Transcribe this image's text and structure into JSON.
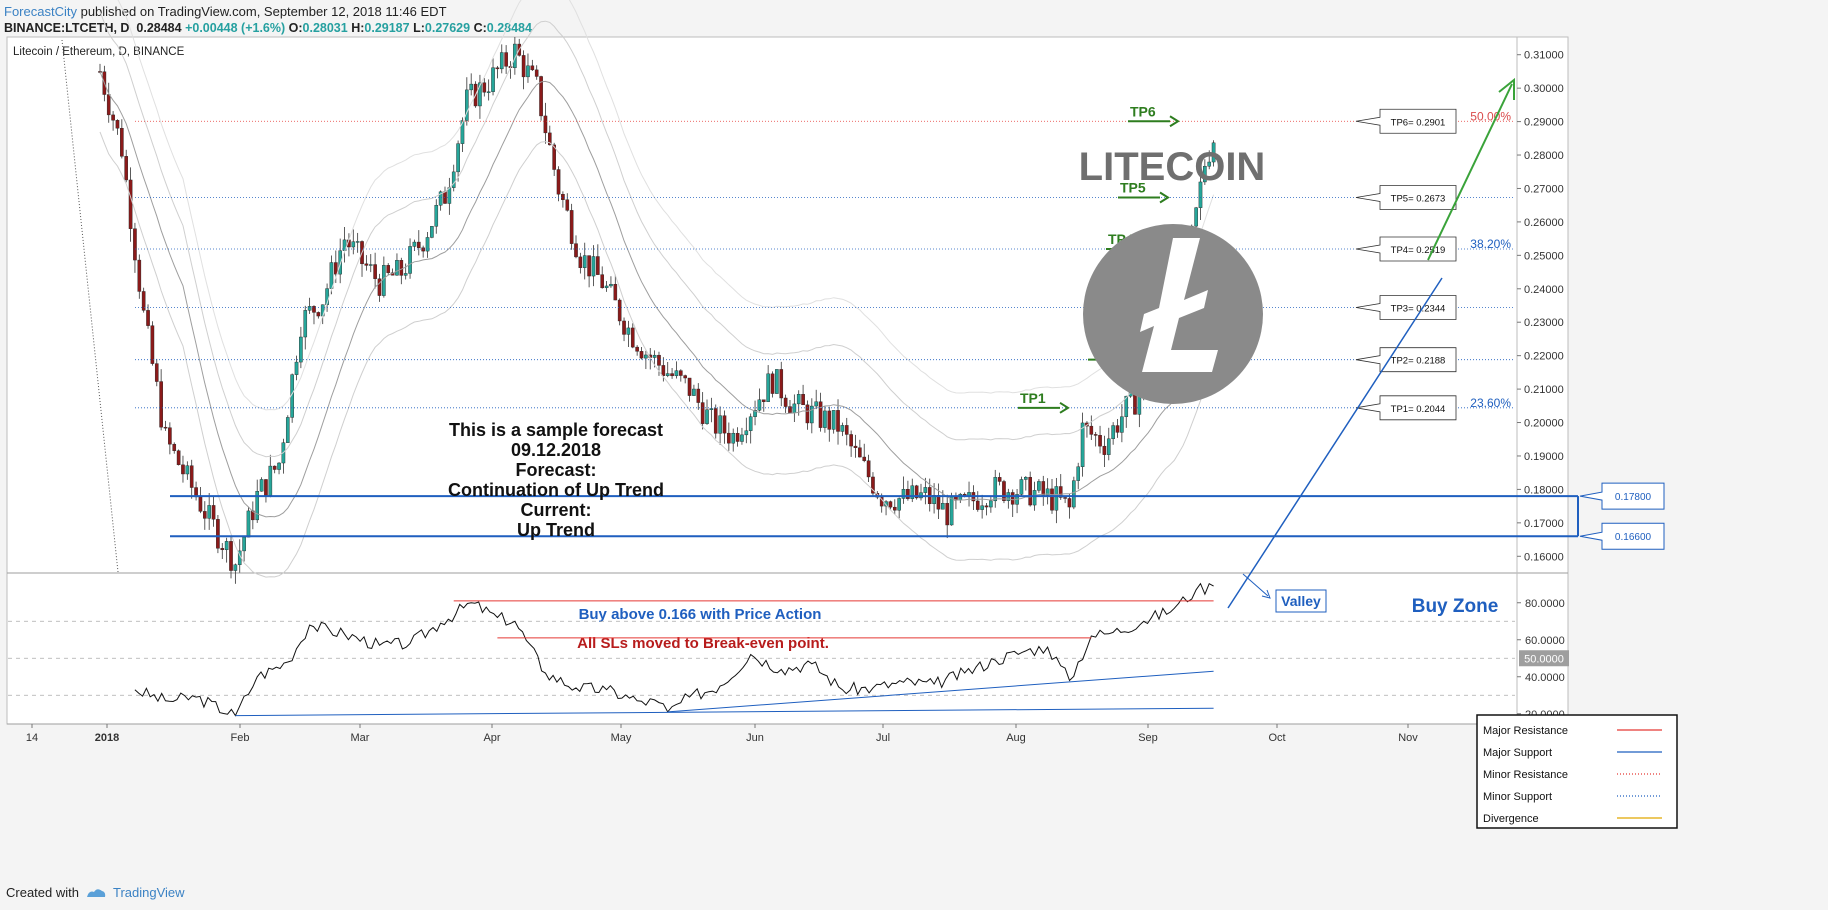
{
  "header": {
    "publisher": "ForecastCity",
    "published_text": "published on TradingView.com, September 12, 2018 11:46 EDT",
    "symbol": "BINANCE:LTCETH, D",
    "last": "0.28484",
    "change": "+0.00448 (+1.6%)",
    "o_label": "O:",
    "o": "0.28031",
    "h_label": "H:",
    "h": "0.29187",
    "l_label": "L:",
    "l": "0.27629",
    "c_label": "C:",
    "c": "0.28484"
  },
  "footer": {
    "created_with": "Created with",
    "tradingview": "TradingView"
  },
  "colors": {
    "up": "#26a69a",
    "down": "#8b1a1a",
    "blue": "#1f5fbf",
    "green": "#2e7d1f",
    "red": "#e53935",
    "fib": "#d94c4c",
    "gray": "#888888"
  },
  "chart_data": [
    {
      "type": "candlestick",
      "title": "Litecoin / Ethereum, D, BINANCE",
      "ylim": [
        0.155,
        0.315
      ],
      "y_ticks": [
        "0.31000",
        "0.30000",
        "0.29000",
        "0.28000",
        "0.27000",
        "0.26000",
        "0.25000",
        "0.24000",
        "0.23000",
        "0.22000",
        "0.21000",
        "0.20000",
        "0.19000",
        "0.18000",
        "0.17000",
        "0.16000"
      ],
      "x_labels": [
        "14",
        "2018",
        "Feb",
        "Mar",
        "Apr",
        "May",
        "Jun",
        "Jul",
        "Aug",
        "Sep",
        "Oct",
        "Nov"
      ],
      "close_path": [
        [
          "2017-12-31",
          0.305
        ],
        [
          "2018-01-05",
          0.282
        ],
        [
          "2018-01-10",
          0.232
        ],
        [
          "2018-01-15",
          0.195
        ],
        [
          "2018-01-20",
          0.183
        ],
        [
          "2018-01-25",
          0.171
        ],
        [
          "2018-01-31",
          0.158
        ],
        [
          "2018-02-05",
          0.178
        ],
        [
          "2018-02-10",
          0.188
        ],
        [
          "2018-02-15",
          0.23
        ],
        [
          "2018-02-20",
          0.237
        ],
        [
          "2018-02-25",
          0.255
        ],
        [
          "2018-03-01",
          0.248
        ],
        [
          "2018-03-05",
          0.242
        ],
        [
          "2018-03-10",
          0.245
        ],
        [
          "2018-03-15",
          0.255
        ],
        [
          "2018-03-20",
          0.268
        ],
        [
          "2018-03-25",
          0.296
        ],
        [
          "2018-03-30",
          0.302
        ],
        [
          "2018-04-05",
          0.311
        ],
        [
          "2018-04-10",
          0.3
        ],
        [
          "2018-04-15",
          0.27
        ],
        [
          "2018-04-20",
          0.25
        ],
        [
          "2018-04-25",
          0.242
        ],
        [
          "2018-05-01",
          0.228
        ],
        [
          "2018-05-05",
          0.221
        ],
        [
          "2018-05-10",
          0.215
        ],
        [
          "2018-05-15",
          0.21
        ],
        [
          "2018-05-20",
          0.2
        ],
        [
          "2018-05-25",
          0.196
        ],
        [
          "2018-05-30",
          0.206
        ],
        [
          "2018-06-03",
          0.213
        ],
        [
          "2018-06-08",
          0.205
        ],
        [
          "2018-06-13",
          0.202
        ],
        [
          "2018-06-18",
          0.199
        ],
        [
          "2018-06-23",
          0.188
        ],
        [
          "2018-06-28",
          0.178
        ],
        [
          "2018-07-03",
          0.177
        ],
        [
          "2018-07-08",
          0.178
        ],
        [
          "2018-07-13",
          0.173
        ],
        [
          "2018-07-18",
          0.176
        ],
        [
          "2018-07-23",
          0.18
        ],
        [
          "2018-07-28",
          0.18
        ],
        [
          "2018-08-02",
          0.179
        ],
        [
          "2018-08-07",
          0.177
        ],
        [
          "2018-08-10",
          0.174
        ],
        [
          "2018-08-13",
          0.198
        ],
        [
          "2018-08-18",
          0.194
        ],
        [
          "2018-08-23",
          0.204
        ],
        [
          "2018-08-28",
          0.211
        ],
        [
          "2018-09-01",
          0.22
        ],
        [
          "2018-09-04",
          0.235
        ],
        [
          "2018-09-07",
          0.255
        ],
        [
          "2018-09-10",
          0.278
        ],
        [
          "2018-09-12",
          0.285
        ]
      ],
      "levels": [
        {
          "name": "TP6",
          "value": 0.2901,
          "label": "TP6= 0.2901"
        },
        {
          "name": "TP5",
          "value": 0.2673,
          "label": "TP5= 0.2673"
        },
        {
          "name": "TP4",
          "value": 0.2519,
          "label": "TP4= 0.2519"
        },
        {
          "name": "TP3",
          "value": 0.2344,
          "label": "TP3= 0.2344"
        },
        {
          "name": "TP2",
          "value": 0.2188,
          "label": "TP2= 0.2188"
        },
        {
          "name": "TP1",
          "value": 0.2044,
          "label": "TP1= 0.2044"
        }
      ],
      "fib_levels": [
        {
          "label": "50.00%",
          "value": 0.2901
        },
        {
          "label": "38.20%",
          "value": 0.2519
        },
        {
          "label": "23.60%",
          "value": 0.2044
        }
      ],
      "buy_zone": {
        "upper": 0.178,
        "lower": 0.166,
        "upper_label": "0.17800",
        "lower_label": "0.16600",
        "label": "Buy Zone"
      },
      "annotations": {
        "forecast_lines": [
          "This is a sample forecast",
          "09.12.2018",
          "Forecast:",
          "Continuation of Up Trend",
          "Current:",
          "Up Trend"
        ],
        "buy_note": "Buy above 0.166 with Price Action",
        "sl_note": "All SLs moved to Break-even point.",
        "valley": "Valley",
        "coin_name": "LITECOIN"
      }
    },
    {
      "type": "line",
      "name": "RSI",
      "ylim": [
        15,
        95
      ],
      "y_ticks": [
        "80.0000",
        "60.0000",
        "40.0000",
        "20.0000"
      ],
      "current_label": "50.0000",
      "dashed_levels": [
        70,
        50,
        30
      ],
      "values": [
        [
          "2018-01-08",
          33
        ],
        [
          "2018-01-15",
          27
        ],
        [
          "2018-01-22",
          29
        ],
        [
          "2018-01-31",
          19
        ],
        [
          "2018-02-05",
          40
        ],
        [
          "2018-02-12",
          48
        ],
        [
          "2018-02-17",
          68
        ],
        [
          "2018-02-25",
          63
        ],
        [
          "2018-03-05",
          57
        ],
        [
          "2018-03-12",
          58
        ],
        [
          "2018-03-19",
          69
        ],
        [
          "2018-03-26",
          80
        ],
        [
          "2018-04-01",
          72
        ],
        [
          "2018-04-05",
          70
        ],
        [
          "2018-04-12",
          42
        ],
        [
          "2018-04-19",
          34
        ],
        [
          "2018-04-26",
          33
        ],
        [
          "2018-05-03",
          27
        ],
        [
          "2018-05-08",
          26
        ],
        [
          "2018-05-10",
          21
        ],
        [
          "2018-05-15",
          29
        ],
        [
          "2018-05-22",
          35
        ],
        [
          "2018-05-29",
          52
        ],
        [
          "2018-06-05",
          44
        ],
        [
          "2018-06-12",
          47
        ],
        [
          "2018-06-19",
          33
        ],
        [
          "2018-06-26",
          34
        ],
        [
          "2018-07-03",
          37
        ],
        [
          "2018-07-10",
          36
        ],
        [
          "2018-07-17",
          42
        ],
        [
          "2018-07-24",
          49
        ],
        [
          "2018-07-31",
          54
        ],
        [
          "2018-08-05",
          56
        ],
        [
          "2018-08-10",
          38
        ],
        [
          "2018-08-15",
          62
        ],
        [
          "2018-08-20",
          64
        ],
        [
          "2018-08-27",
          70
        ],
        [
          "2018-09-03",
          77
        ],
        [
          "2018-09-08",
          87
        ],
        [
          "2018-09-12",
          89
        ]
      ],
      "legend": [
        {
          "label": "Major Resistance",
          "color": "#e53935",
          "style": "solid"
        },
        {
          "label": "Major Support",
          "color": "#1f5fbf",
          "style": "solid"
        },
        {
          "label": "Minor Resistance",
          "color": "#e53935",
          "style": "dotted"
        },
        {
          "label": "Minor Support",
          "color": "#1f5fbf",
          "style": "dotted"
        },
        {
          "label": "Divergence",
          "color": "#e0a800",
          "style": "solid"
        }
      ]
    }
  ]
}
